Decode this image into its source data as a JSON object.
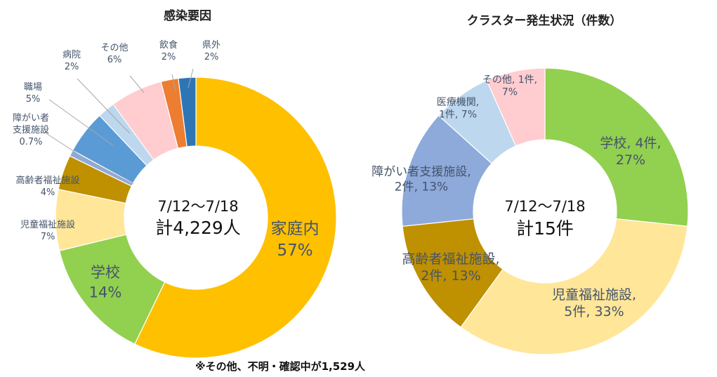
{
  "chart_data": [
    {
      "type": "pie",
      "variant": "donut",
      "title": "感染要因",
      "center_line1": "7/12〜7/18",
      "center_line2": "計4,229人",
      "note": "※その他、不明・確認中が1,529人",
      "slices": [
        {
          "name": "家庭内",
          "value": 57,
          "label_text": "家庭内",
          "value_text": "57%",
          "color": "#ffc000"
        },
        {
          "name": "学校",
          "value": 14,
          "label_text": "学校",
          "value_text": "14%",
          "color": "#92d050"
        },
        {
          "name": "児童福祉施設",
          "value": 7,
          "label_text": "児童福祉施設",
          "value_text": "7%",
          "color": "#ffe699"
        },
        {
          "name": "高齢者福祉施設",
          "value": 4,
          "label_text": "高齢者福祉施設",
          "value_text": "4%",
          "color": "#bf9000"
        },
        {
          "name": "障がい者支援施設",
          "value": 0.7,
          "label_text": "障がい者\n支援施設",
          "value_text": "0.7%",
          "color": "#8eaadb"
        },
        {
          "name": "職場",
          "value": 5,
          "label_text": "職場",
          "value_text": "5%",
          "color": "#5b9bd5"
        },
        {
          "name": "病院",
          "value": 2,
          "label_text": "病院",
          "value_text": "2%",
          "color": "#bdd7ee"
        },
        {
          "name": "その他",
          "value": 6,
          "label_text": "その他",
          "value_text": "6%",
          "color": "#ffccd0"
        },
        {
          "name": "飲食",
          "value": 2,
          "label_text": "飲食",
          "value_text": "2%",
          "color": "#ed7d31"
        },
        {
          "name": "県外",
          "value": 2,
          "label_text": "県外",
          "value_text": "2%",
          "color": "#2e75b6"
        }
      ]
    },
    {
      "type": "pie",
      "variant": "donut",
      "title": "クラスター発生状況（件数）",
      "center_line1": "7/12〜7/18",
      "center_line2": "計15件",
      "slices": [
        {
          "name": "学校",
          "value": 4,
          "label_text": "学校, 4件,\n27%",
          "color": "#92d050"
        },
        {
          "name": "児童福祉施設",
          "value": 5,
          "label_text": "児童福祉施設,\n5件, 33%",
          "color": "#ffe699"
        },
        {
          "name": "高齢者福祉施設",
          "value": 2,
          "label_text": "高齢者福祉施設,\n2件, 13%",
          "color": "#bf9000"
        },
        {
          "name": "障がい者支援施設",
          "value": 2,
          "label_text": "障がい者支援施設,\n2件, 13%",
          "color": "#8eaadb"
        },
        {
          "name": "医療機関",
          "value": 1,
          "label_text": "医療機関,\n1件, 7%",
          "color": "#bdd7ee"
        },
        {
          "name": "その他",
          "value": 1,
          "label_text": "その他, 1件,\n7%",
          "color": "#ffccd0"
        }
      ]
    }
  ]
}
